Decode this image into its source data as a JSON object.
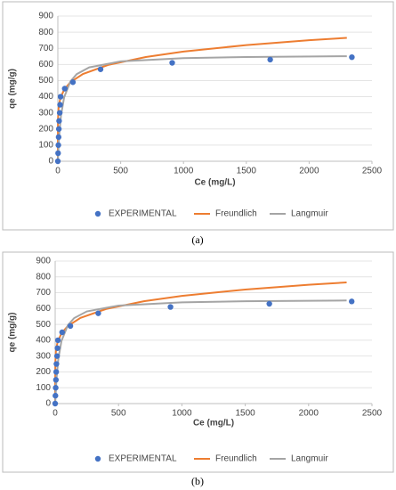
{
  "chart_data": [
    {
      "type": "scatter",
      "caption": "(a)",
      "xlabel": "Ce (mg/L)",
      "ylabel": "qe (mg/g)",
      "xlim": [
        0,
        2500
      ],
      "xticks": [
        0,
        500,
        1000,
        1500,
        2000,
        2500
      ],
      "ylim": [
        0,
        900
      ],
      "yticks": [
        0,
        100,
        200,
        300,
        400,
        500,
        600,
        700,
        800,
        900
      ],
      "grid": true,
      "series": [
        {
          "name": "EXPERIMENTAL",
          "color": "#4472c4",
          "style": "markers",
          "x": [
            0,
            2,
            4,
            6,
            8,
            10,
            15,
            18,
            22,
            55,
            120,
            340,
            910,
            1690,
            2340
          ],
          "values": [
            0,
            50,
            100,
            150,
            200,
            250,
            300,
            350,
            400,
            450,
            490,
            570,
            610,
            630,
            645
          ]
        },
        {
          "name": "Freundlich",
          "color": "#ed7d31",
          "style": "line",
          "x": [
            0,
            1,
            5,
            10,
            20,
            50,
            100,
            200,
            400,
            700,
            1000,
            1500,
            2000,
            2300
          ],
          "values": [
            0,
            255,
            321,
            354,
            390,
            444,
            490,
            541,
            597,
            646,
            680,
            720,
            750,
            765
          ]
        },
        {
          "name": "Langmuir",
          "color": "#a5a5a5",
          "style": "line",
          "x": [
            0,
            10,
            25,
            50,
            100,
            150,
            250,
            500,
            1000,
            1500,
            2300
          ],
          "values": [
            0,
            152,
            283,
            396,
            495,
            540,
            582,
            619,
            639,
            646,
            651
          ]
        }
      ]
    },
    {
      "type": "scatter",
      "caption": "(b)",
      "xlabel": "Ce (mg/L)",
      "ylabel": "qe (mg/g)",
      "xlim": [
        0,
        2500
      ],
      "xticks": [
        0,
        500,
        1000,
        1500,
        2000,
        2500
      ],
      "ylim": [
        0,
        900
      ],
      "yticks": [
        0,
        100,
        200,
        300,
        400,
        500,
        600,
        700,
        800,
        900
      ],
      "grid": true,
      "series": [
        {
          "name": "EXPERIMENTAL",
          "color": "#4472c4",
          "style": "markers",
          "x": [
            0,
            2,
            4,
            6,
            8,
            10,
            15,
            18,
            22,
            55,
            120,
            340,
            910,
            1690,
            2340
          ],
          "values": [
            0,
            50,
            100,
            150,
            200,
            250,
            300,
            350,
            400,
            450,
            490,
            570,
            610,
            630,
            645
          ]
        },
        {
          "name": "Freundlich",
          "color": "#ed7d31",
          "style": "line",
          "x": [
            0,
            1,
            5,
            10,
            20,
            50,
            100,
            200,
            400,
            700,
            1000,
            1500,
            2000,
            2300
          ],
          "values": [
            0,
            255,
            321,
            354,
            390,
            444,
            490,
            541,
            597,
            646,
            680,
            720,
            750,
            765
          ]
        },
        {
          "name": "Langmuir",
          "color": "#a5a5a5",
          "style": "line",
          "x": [
            0,
            10,
            25,
            50,
            100,
            150,
            250,
            500,
            1000,
            1500,
            2300
          ],
          "values": [
            0,
            152,
            283,
            396,
            495,
            540,
            582,
            619,
            639,
            646,
            651
          ]
        }
      ]
    }
  ]
}
